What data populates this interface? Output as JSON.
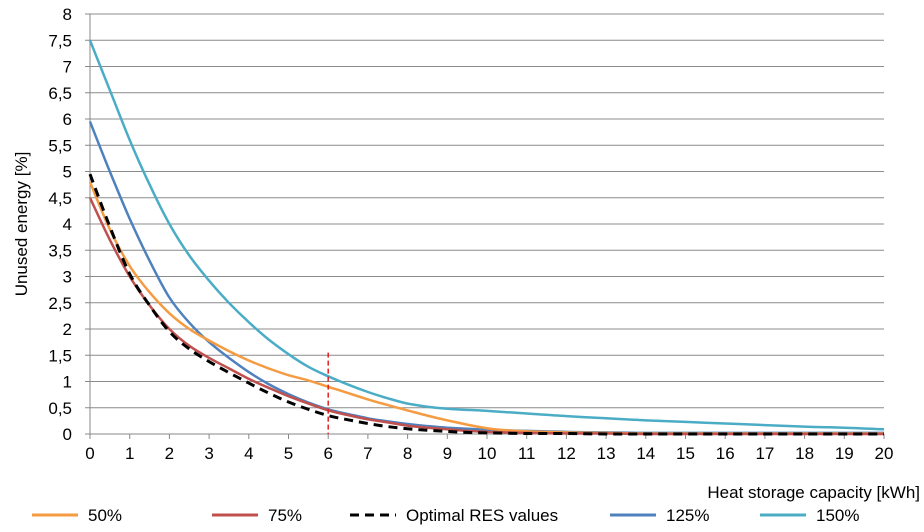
{
  "chart_data": {
    "type": "line",
    "xlabel": "Heat storage capacity [kWh]",
    "ylabel": "Unused energy [%]",
    "xlim": [
      0,
      20
    ],
    "ylim": [
      0,
      8
    ],
    "x_ticks": [
      "0",
      "1",
      "2",
      "3",
      "4",
      "5",
      "6",
      "7",
      "8",
      "9",
      "10",
      "11",
      "12",
      "13",
      "14",
      "15",
      "16",
      "17",
      "18",
      "19",
      "20"
    ],
    "y_ticks": [
      "0",
      "0,5",
      "1",
      "1,5",
      "2",
      "2,5",
      "3",
      "3,5",
      "4",
      "4,5",
      "5",
      "5,5",
      "6",
      "6,5",
      "7",
      "7,5",
      "8"
    ],
    "grid": "horizontal",
    "legend_position": "bottom",
    "reference_line": {
      "x": 6,
      "y_top": 1.55,
      "color": "#e02020"
    },
    "series": [
      {
        "name": "50%",
        "color": "#f59b42",
        "dash": "solid",
        "points": [
          [
            0,
            4.8
          ],
          [
            0.5,
            3.9
          ],
          [
            1,
            3.2
          ],
          [
            1.5,
            2.7
          ],
          [
            2,
            2.3
          ],
          [
            2.5,
            2.0
          ],
          [
            3,
            1.78
          ],
          [
            3.5,
            1.58
          ],
          [
            4,
            1.4
          ],
          [
            4.5,
            1.25
          ],
          [
            5,
            1.12
          ],
          [
            5.5,
            1.02
          ],
          [
            6,
            0.9
          ],
          [
            6.5,
            0.78
          ],
          [
            7,
            0.66
          ],
          [
            7.5,
            0.55
          ],
          [
            8,
            0.45
          ],
          [
            8.5,
            0.35
          ],
          [
            9,
            0.26
          ],
          [
            9.5,
            0.18
          ],
          [
            10,
            0.11
          ],
          [
            10.5,
            0.07
          ],
          [
            11,
            0.05
          ],
          [
            12,
            0.03
          ],
          [
            13,
            0.02
          ],
          [
            14,
            0.01
          ],
          [
            15,
            0.01
          ],
          [
            16,
            0.01
          ],
          [
            17,
            0.01
          ],
          [
            18,
            0.01
          ],
          [
            19,
            0.01
          ],
          [
            20,
            0.01
          ]
        ]
      },
      {
        "name": "75%",
        "color": "#c0504d",
        "dash": "solid",
        "points": [
          [
            0,
            4.5
          ],
          [
            0.5,
            3.7
          ],
          [
            1,
            3.0
          ],
          [
            1.5,
            2.45
          ],
          [
            2,
            2.0
          ],
          [
            2.5,
            1.68
          ],
          [
            3,
            1.45
          ],
          [
            3.5,
            1.25
          ],
          [
            4,
            1.05
          ],
          [
            4.5,
            0.88
          ],
          [
            5,
            0.72
          ],
          [
            5.5,
            0.58
          ],
          [
            6,
            0.45
          ],
          [
            6.5,
            0.36
          ],
          [
            7,
            0.28
          ],
          [
            7.5,
            0.22
          ],
          [
            8,
            0.16
          ],
          [
            8.5,
            0.12
          ],
          [
            9,
            0.09
          ],
          [
            9.5,
            0.06
          ],
          [
            10,
            0.04
          ],
          [
            11,
            0.02
          ],
          [
            12,
            0.01
          ],
          [
            13,
            0.01
          ],
          [
            14,
            0.0
          ],
          [
            15,
            0.0
          ],
          [
            16,
            0.0
          ],
          [
            17,
            0.0
          ],
          [
            18,
            0.0
          ],
          [
            19,
            0.0
          ],
          [
            20,
            0.0
          ]
        ]
      },
      {
        "name": "Optimal RES values",
        "color": "#000000",
        "dash": "dashed",
        "points": [
          [
            0,
            4.95
          ],
          [
            0.5,
            3.95
          ],
          [
            1,
            3.05
          ],
          [
            1.5,
            2.45
          ],
          [
            2,
            1.95
          ],
          [
            2.5,
            1.62
          ],
          [
            3,
            1.38
          ],
          [
            3.5,
            1.17
          ],
          [
            4,
            0.97
          ],
          [
            4.5,
            0.78
          ],
          [
            5,
            0.61
          ],
          [
            5.5,
            0.47
          ],
          [
            6,
            0.35
          ],
          [
            6.5,
            0.27
          ],
          [
            7,
            0.2
          ],
          [
            7.5,
            0.14
          ],
          [
            8,
            0.1
          ],
          [
            8.5,
            0.07
          ],
          [
            9,
            0.05
          ],
          [
            9.5,
            0.03
          ],
          [
            10,
            0.02
          ],
          [
            11,
            0.01
          ],
          [
            12,
            0.01
          ],
          [
            13,
            0.0
          ],
          [
            14,
            0.0
          ],
          [
            15,
            0.0
          ],
          [
            16,
            0.0
          ],
          [
            17,
            0.0
          ],
          [
            18,
            0.0
          ],
          [
            19,
            0.0
          ],
          [
            20,
            0.0
          ]
        ]
      },
      {
        "name": "125%",
        "color": "#4f81bd",
        "dash": "solid",
        "points": [
          [
            0,
            5.95
          ],
          [
            0.5,
            5.0
          ],
          [
            1,
            4.1
          ],
          [
            1.5,
            3.3
          ],
          [
            2,
            2.6
          ],
          [
            2.5,
            2.12
          ],
          [
            3,
            1.75
          ],
          [
            3.5,
            1.45
          ],
          [
            4,
            1.18
          ],
          [
            4.5,
            0.95
          ],
          [
            5,
            0.76
          ],
          [
            5.5,
            0.6
          ],
          [
            6,
            0.47
          ],
          [
            6.5,
            0.38
          ],
          [
            7,
            0.3
          ],
          [
            7.5,
            0.24
          ],
          [
            8,
            0.19
          ],
          [
            8.5,
            0.15
          ],
          [
            9,
            0.12
          ],
          [
            9.5,
            0.1
          ],
          [
            10,
            0.08
          ],
          [
            11,
            0.06
          ],
          [
            12,
            0.04
          ],
          [
            13,
            0.03
          ],
          [
            14,
            0.02
          ],
          [
            15,
            0.02
          ],
          [
            16,
            0.02
          ],
          [
            17,
            0.02
          ],
          [
            18,
            0.02
          ],
          [
            19,
            0.02
          ],
          [
            20,
            0.02
          ]
        ]
      },
      {
        "name": "150%",
        "color": "#4bacc6",
        "dash": "solid",
        "points": [
          [
            0,
            7.5
          ],
          [
            0.5,
            6.55
          ],
          [
            1,
            5.6
          ],
          [
            1.5,
            4.75
          ],
          [
            2,
            4.0
          ],
          [
            2.5,
            3.4
          ],
          [
            3,
            2.92
          ],
          [
            3.5,
            2.5
          ],
          [
            4,
            2.13
          ],
          [
            4.5,
            1.8
          ],
          [
            5,
            1.52
          ],
          [
            5.5,
            1.28
          ],
          [
            6,
            1.1
          ],
          [
            6.5,
            0.94
          ],
          [
            7,
            0.8
          ],
          [
            7.5,
            0.68
          ],
          [
            8,
            0.58
          ],
          [
            8.5,
            0.52
          ],
          [
            9,
            0.48
          ],
          [
            9.5,
            0.46
          ],
          [
            10,
            0.44
          ],
          [
            11,
            0.39
          ],
          [
            12,
            0.34
          ],
          [
            13,
            0.3
          ],
          [
            14,
            0.26
          ],
          [
            15,
            0.23
          ],
          [
            16,
            0.2
          ],
          [
            17,
            0.17
          ],
          [
            18,
            0.14
          ],
          [
            19,
            0.12
          ],
          [
            20,
            0.09
          ]
        ]
      }
    ]
  }
}
